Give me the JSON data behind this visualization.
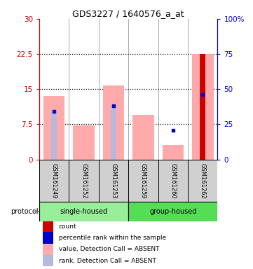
{
  "title": "GDS3227 / 1640576_a_at",
  "samples": [
    "GSM161249",
    "GSM161252",
    "GSM161253",
    "GSM161259",
    "GSM161260",
    "GSM161262"
  ],
  "value_bars": [
    13.5,
    7.2,
    15.8,
    9.5,
    3.0,
    22.5
  ],
  "rank_bars": [
    10.2,
    null,
    11.5,
    null,
    null,
    13.8
  ],
  "rank_marks": [
    10.2,
    null,
    11.5,
    null,
    6.2,
    13.8
  ],
  "count_bars": [
    null,
    null,
    null,
    null,
    null,
    22.5
  ],
  "count_color": "#cc0000",
  "value_color": "#ffaaaa",
  "rank_color": "#b8b8dd",
  "blue_mark_color": "#0000cc",
  "ylim_left": [
    0,
    30
  ],
  "ylim_right": [
    0,
    100
  ],
  "yticks_left": [
    0,
    7.5,
    15,
    22.5,
    30
  ],
  "ytick_labels_left": [
    "0",
    "7.5",
    "15",
    "22.5",
    "30"
  ],
  "yticks_right": [
    0,
    25,
    50,
    75,
    100
  ],
  "ytick_labels_right": [
    "0",
    "25",
    "50",
    "75",
    "100%"
  ],
  "hlines": [
    7.5,
    15,
    22.5
  ],
  "plot_bg": "#d8d8d8",
  "group_color_single": "#99ee99",
  "group_color_group": "#55dd55",
  "legend_items": [
    {
      "color": "#cc0000",
      "label": "count"
    },
    {
      "color": "#0000cc",
      "label": "percentile rank within the sample"
    },
    {
      "color": "#ffaaaa",
      "label": "value, Detection Call = ABSENT"
    },
    {
      "color": "#b8b8dd",
      "label": "rank, Detection Call = ABSENT"
    }
  ]
}
